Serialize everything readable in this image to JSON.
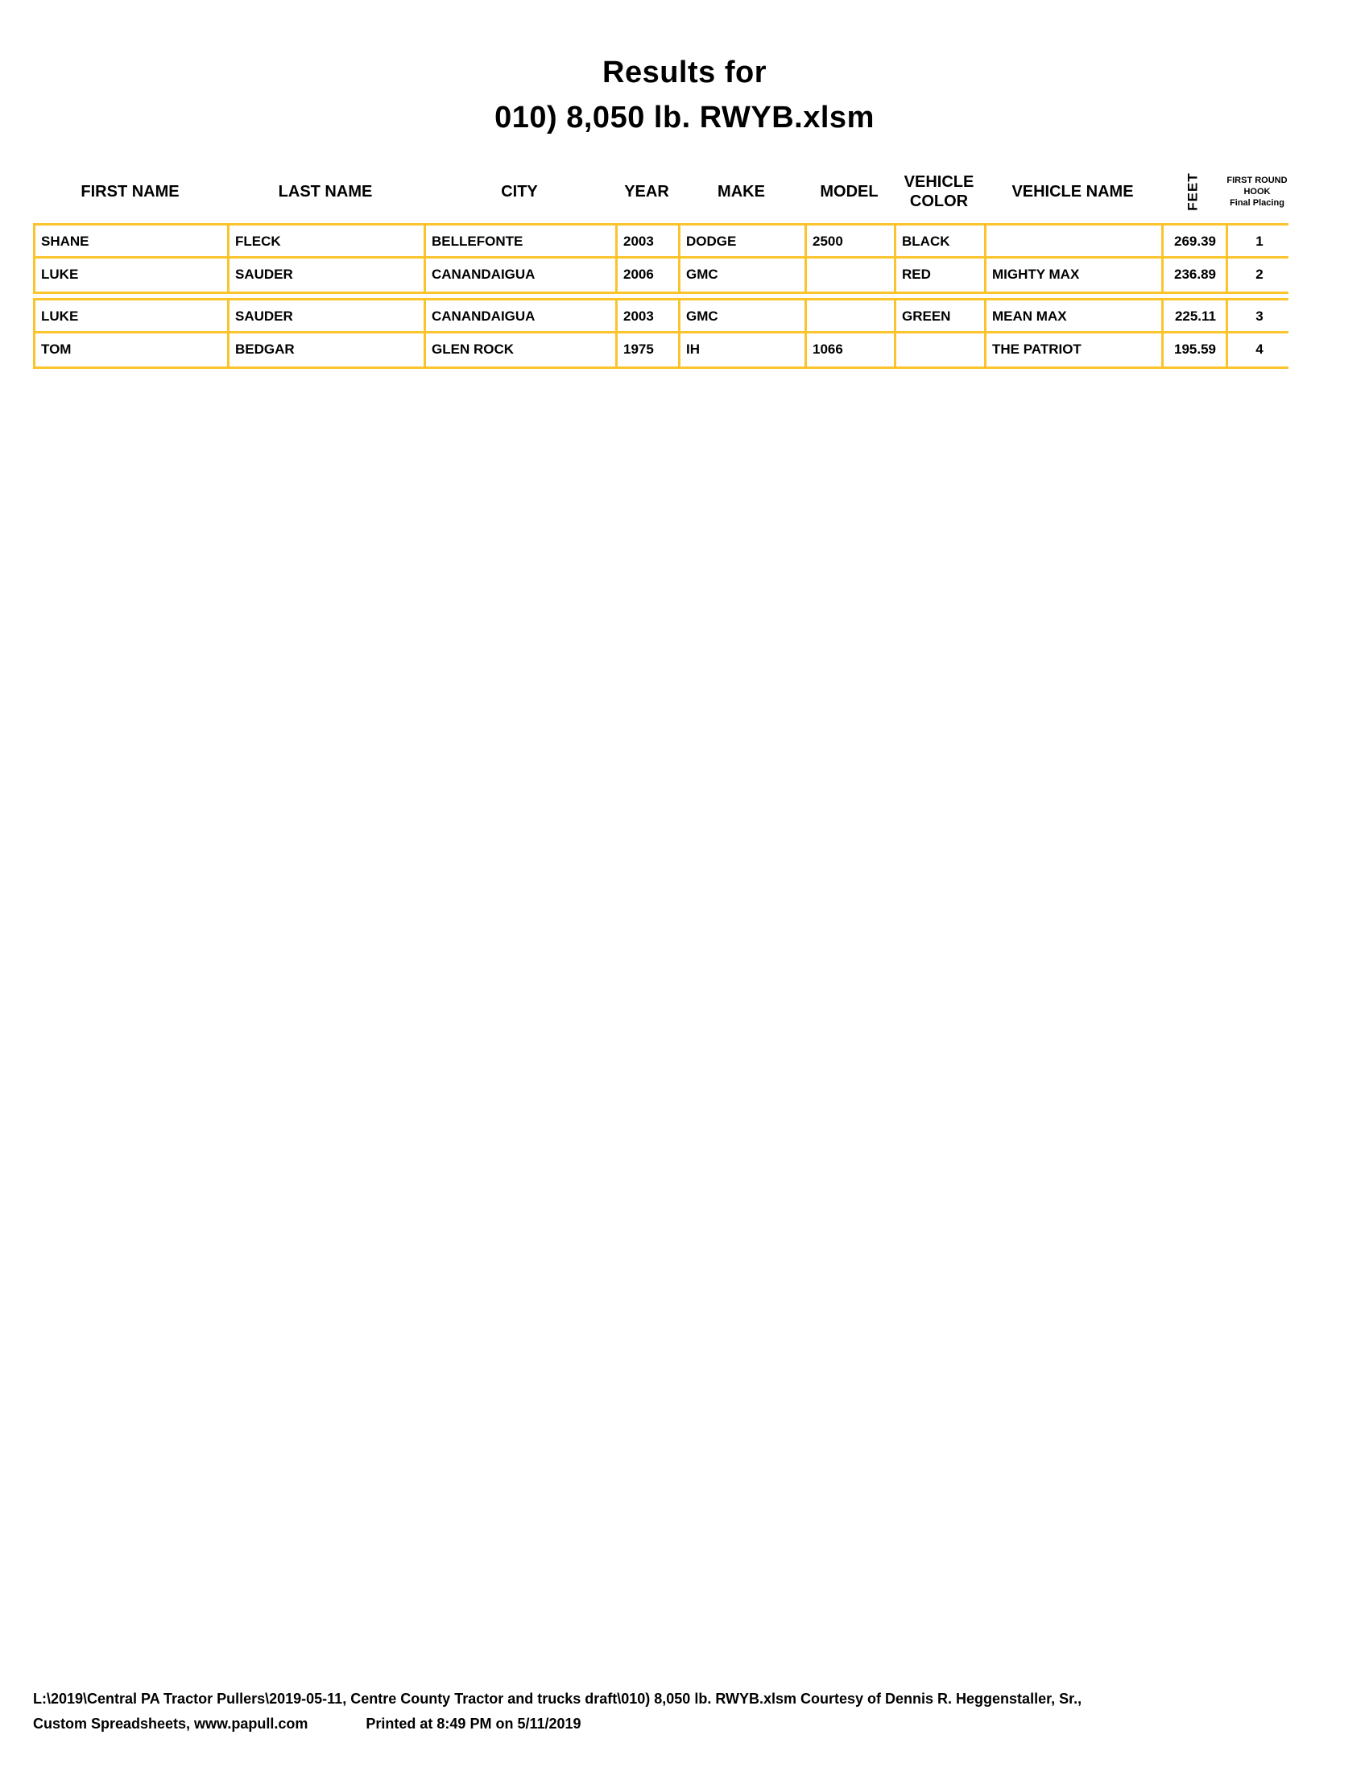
{
  "title": {
    "line1": "Results for",
    "line2": "010) 8,050 lb. RWYB.xlsm"
  },
  "headers": {
    "first_name": "FIRST NAME",
    "last_name": "LAST NAME",
    "city": "CITY",
    "year": "YEAR",
    "make": "MAKE",
    "model": "MODEL",
    "vehicle_color": "VEHICLE COLOR",
    "vehicle_name": "VEHICLE NAME",
    "feet": "FEET",
    "placing_line1": "FIRST ROUND",
    "placing_line2": "HOOK",
    "placing_line3": "Final Placing"
  },
  "rows": [
    {
      "first_name": "SHANE",
      "last_name": "FLECK",
      "city": "BELLEFONTE",
      "year": "2003",
      "make": "DODGE",
      "model": "2500",
      "vehicle_color": "BLACK",
      "vehicle_name": "",
      "feet": "269.39",
      "placing": "1"
    },
    {
      "first_name": "LUKE",
      "last_name": "SAUDER",
      "city": "CANANDAIGUA",
      "year": "2006",
      "make": "GMC",
      "model": "",
      "vehicle_color": "RED",
      "vehicle_name": "MIGHTY MAX",
      "feet": "236.89",
      "placing": "2"
    },
    {
      "first_name": "LUKE",
      "last_name": "SAUDER",
      "city": "CANANDAIGUA",
      "year": "2003",
      "make": "GMC",
      "model": "",
      "vehicle_color": "GREEN",
      "vehicle_name": "MEAN MAX",
      "feet": "225.11",
      "placing": "3"
    },
    {
      "first_name": "TOM",
      "last_name": "BEDGAR",
      "city": "GLEN ROCK",
      "year": "1975",
      "make": "IH",
      "model": "1066",
      "vehicle_color": "",
      "vehicle_name": "THE PATRIOT",
      "feet": "195.59",
      "placing": "4"
    }
  ],
  "footer": {
    "line1": "L:\\2019\\Central PA Tractor Pullers\\2019-05-11, Centre County Tractor and trucks draft\\010) 8,050 lb. RWYB.xlsm  Courtesy of Dennis R. Heggenstaller, Sr.,",
    "line2_left": "Custom Spreadsheets, www.papull.com",
    "line2_right": "Printed at 8:49 PM on 5/11/2019"
  },
  "colors": {
    "border_gold": "#FBC42D",
    "text": "#000000",
    "background": "#FFFFFF"
  }
}
